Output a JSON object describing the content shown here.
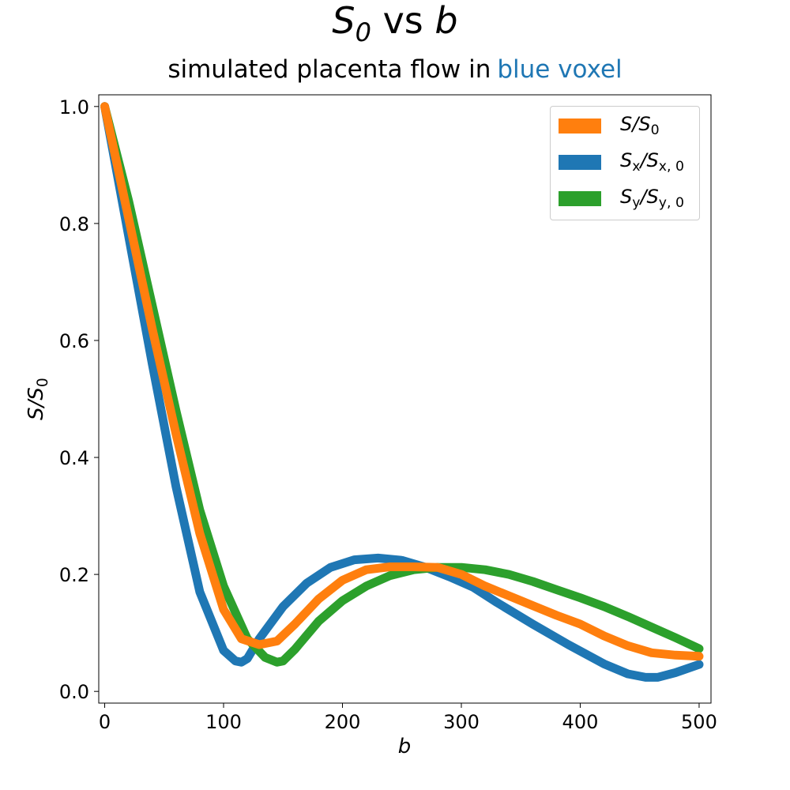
{
  "chart_data": {
    "type": "line",
    "title_parts": {
      "s": "S",
      "sub": "0",
      "vs": "vs",
      "b": "b"
    },
    "subtitle": "simulated placenta flow in",
    "subtitle_accent": "blue voxel",
    "subtitle_accent_color": "#1f77b4",
    "xlabel": "b",
    "ylabel": "S/S",
    "ylabel_sub": "0",
    "xlim": [
      -5,
      510
    ],
    "ylim": [
      -0.02,
      1.02
    ],
    "xticks": [
      0,
      100,
      200,
      300,
      400,
      500
    ],
    "yticks": [
      0.0,
      0.2,
      0.4,
      0.6,
      0.8,
      1.0
    ],
    "xtick_labels": [
      "0",
      "100",
      "200",
      "300",
      "400",
      "500"
    ],
    "ytick_labels": [
      "0.0",
      "0.2",
      "0.4",
      "0.6",
      "0.8",
      "1.0"
    ],
    "grid": false,
    "legend_position": "top-right",
    "series": [
      {
        "name": "S/S0",
        "legend_main": "S/S",
        "legend_sub": "0",
        "color": "#ff7f0e",
        "x": [
          0,
          20,
          40,
          60,
          80,
          100,
          115,
          130,
          145,
          160,
          180,
          200,
          220,
          240,
          260,
          280,
          300,
          320,
          350,
          380,
          400,
          420,
          440,
          460,
          480,
          500
        ],
        "y": [
          1.0,
          0.81,
          0.62,
          0.44,
          0.27,
          0.14,
          0.09,
          0.08,
          0.086,
          0.115,
          0.158,
          0.19,
          0.208,
          0.213,
          0.213,
          0.212,
          0.2,
          0.18,
          0.155,
          0.13,
          0.115,
          0.095,
          0.078,
          0.066,
          0.062,
          0.06
        ]
      },
      {
        "name": "Sx/Sx,0",
        "legend_main": "S",
        "legend_sub": "x",
        "legend_mid": "/S",
        "legend_sub2": "x, 0",
        "color": "#1f77b4",
        "x": [
          0,
          20,
          40,
          60,
          80,
          100,
          110,
          115,
          120,
          130,
          150,
          170,
          190,
          210,
          230,
          250,
          270,
          290,
          310,
          330,
          360,
          390,
          420,
          440,
          455,
          465,
          480,
          500
        ],
        "y": [
          1.0,
          0.78,
          0.56,
          0.35,
          0.17,
          0.07,
          0.052,
          0.05,
          0.056,
          0.09,
          0.145,
          0.185,
          0.212,
          0.225,
          0.228,
          0.224,
          0.212,
          0.196,
          0.178,
          0.152,
          0.115,
          0.08,
          0.047,
          0.03,
          0.024,
          0.024,
          0.032,
          0.046
        ]
      },
      {
        "name": "Sy/Sy,0",
        "legend_main": "S",
        "legend_sub": "y",
        "legend_mid": "/S",
        "legend_sub2": "y, 0",
        "color": "#2ca02c",
        "x": [
          0,
          20,
          40,
          60,
          80,
          100,
          120,
          135,
          145,
          150,
          160,
          180,
          200,
          220,
          240,
          260,
          280,
          300,
          320,
          340,
          360,
          380,
          400,
          420,
          440,
          460,
          480,
          500
        ],
        "y": [
          1.0,
          0.84,
          0.66,
          0.48,
          0.31,
          0.18,
          0.09,
          0.058,
          0.05,
          0.052,
          0.072,
          0.12,
          0.155,
          0.18,
          0.198,
          0.208,
          0.212,
          0.212,
          0.208,
          0.2,
          0.188,
          0.174,
          0.16,
          0.145,
          0.128,
          0.11,
          0.092,
          0.073
        ]
      }
    ]
  }
}
